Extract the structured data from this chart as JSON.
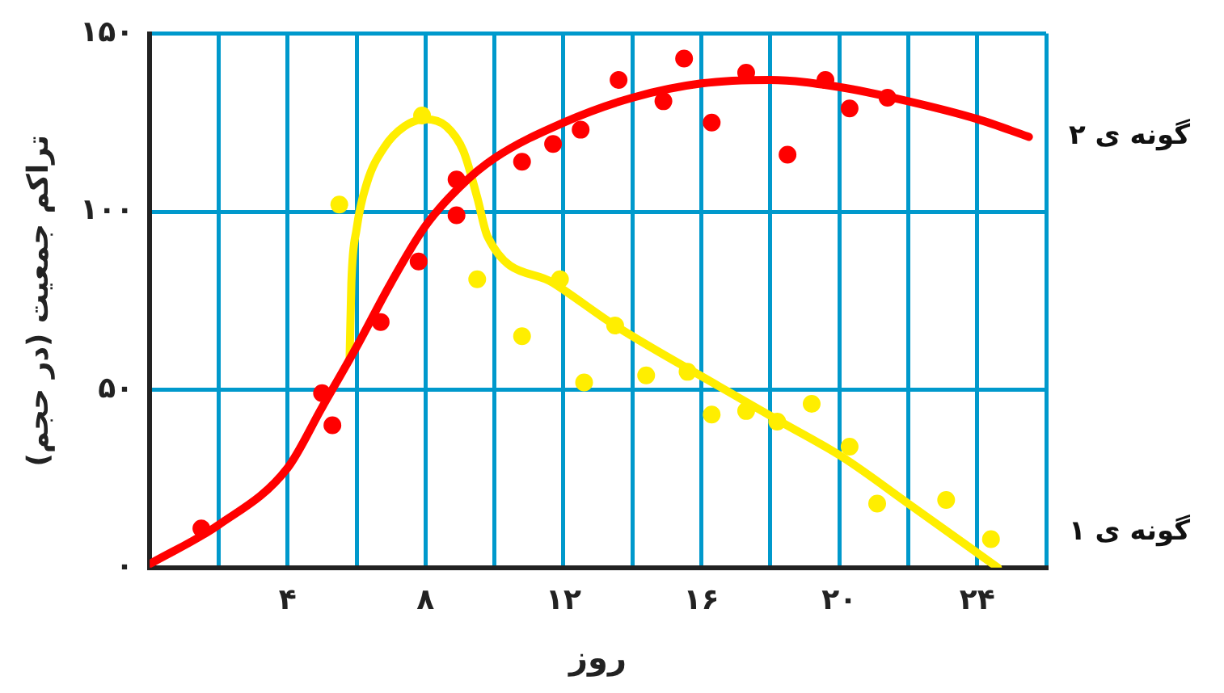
{
  "chart_data": {
    "type": "scatter",
    "xlabel": "روز",
    "ylabel": "تراکم جمعیت (در حجم)",
    "xlim": [
      0,
      26
    ],
    "ylim": [
      0,
      150
    ],
    "xticks": [
      {
        "value": 0,
        "label": null
      },
      {
        "value": 2,
        "label": null
      },
      {
        "value": 4,
        "label": "۴"
      },
      {
        "value": 6,
        "label": null
      },
      {
        "value": 8,
        "label": "۸"
      },
      {
        "value": 10,
        "label": null
      },
      {
        "value": 12,
        "label": "۱۲"
      },
      {
        "value": 14,
        "label": null
      },
      {
        "value": 16,
        "label": "۱۶"
      },
      {
        "value": 18,
        "label": null
      },
      {
        "value": 20,
        "label": "۲۰"
      },
      {
        "value": 22,
        "label": null
      },
      {
        "value": 24,
        "label": "۲۴"
      },
      {
        "value": 26,
        "label": null
      }
    ],
    "yticks": [
      {
        "value": 0,
        "label": "۰"
      },
      {
        "value": 50,
        "label": "۵۰"
      },
      {
        "value": 100,
        "label": "۱۰۰"
      },
      {
        "value": 150,
        "label": "۱۵۰"
      }
    ],
    "grid": true,
    "legend": false,
    "series": [
      {
        "marker": "circle",
        "color": "#ff0000",
        "x": [
          1.5,
          5.0,
          5.3,
          6.7,
          7.8,
          8.9,
          8.9,
          10.8,
          11.7,
          12.5,
          13.6,
          14.9,
          15.5,
          16.3,
          17.3,
          18.5,
          19.6,
          20.3,
          21.4
        ],
        "values": [
          11,
          49,
          40,
          69,
          86,
          99,
          109,
          114,
          119,
          123,
          137,
          131,
          143,
          125,
          139,
          116,
          137,
          129,
          132
        ]
      },
      {
        "type": "line",
        "marker": "none",
        "name": "گونه ی ۲",
        "color": "#ff0000",
        "x": [
          0,
          2,
          4,
          5,
          6,
          7,
          8,
          9,
          10,
          12,
          14,
          16,
          18,
          20,
          22,
          24,
          25.5
        ],
        "values": [
          1,
          12,
          28,
          45,
          62,
          80,
          96,
          107,
          115,
          125,
          132,
          136,
          137,
          135,
          131,
          126,
          121
        ]
      },
      {
        "marker": "circle",
        "color": "#ffee00",
        "x": [
          5.5,
          7.9,
          9.5,
          10.8,
          11.9,
          12.6,
          13.5,
          14.4,
          15.6,
          16.3,
          17.3,
          18.2,
          19.2,
          20.3,
          21.1,
          23.1,
          24.4
        ],
        "values": [
          102,
          127,
          81,
          65,
          81,
          52,
          68,
          54,
          55,
          43,
          44,
          41,
          46,
          34,
          18,
          19,
          8
        ]
      },
      {
        "type": "line",
        "marker": "none",
        "name": "گونه ی ۱",
        "color": "#ffee00",
        "x": [
          5.8,
          5.85,
          6,
          6.3,
          6.8,
          7.4,
          8,
          8.6,
          9.1,
          9.5,
          9.8,
          11.7,
          13.5,
          16.5,
          18.3,
          20.1,
          22,
          24.6
        ],
        "values": [
          59,
          80,
          95,
          108,
          118,
          124,
          126,
          124,
          117,
          104,
          93,
          80,
          68,
          51,
          41,
          31,
          18,
          0
        ]
      }
    ]
  }
}
